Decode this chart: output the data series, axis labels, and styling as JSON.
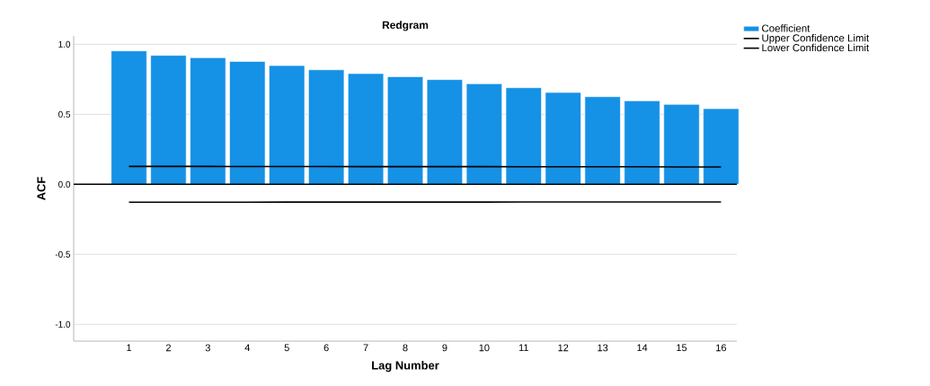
{
  "chart_data": {
    "type": "bar",
    "title": "Redgram",
    "xlabel": "Lag Number",
    "ylabel": "ACF",
    "categories": [
      "1",
      "2",
      "3",
      "4",
      "5",
      "6",
      "7",
      "8",
      "9",
      "10",
      "11",
      "12",
      "13",
      "14",
      "15",
      "16"
    ],
    "series": [
      {
        "name": "Coefficient",
        "color": "#1591e6",
        "values": [
          0.953,
          0.921,
          0.904,
          0.878,
          0.848,
          0.818,
          0.791,
          0.769,
          0.748,
          0.718,
          0.69,
          0.656,
          0.626,
          0.596,
          0.571,
          0.54
        ]
      },
      {
        "name": "Upper Confidence Limit",
        "type": "line",
        "color": "#000000",
        "values": [
          0.128,
          0.128,
          0.128,
          0.127,
          0.127,
          0.127,
          0.126,
          0.126,
          0.126,
          0.126,
          0.125,
          0.125,
          0.125,
          0.125,
          0.124,
          0.124
        ]
      },
      {
        "name": "Lower Confidence Limit",
        "type": "line",
        "color": "#000000",
        "values": [
          -0.128,
          -0.128,
          -0.128,
          -0.128,
          -0.127,
          -0.127,
          -0.127,
          -0.127,
          -0.127,
          -0.127,
          -0.126,
          -0.126,
          -0.126,
          -0.126,
          -0.126,
          -0.126
        ]
      }
    ],
    "ylim": [
      -1.12,
      1.06
    ],
    "yticks": [
      {
        "value": -1,
        "label": "-1.0"
      },
      {
        "value": -0.5,
        "label": "-0.5"
      },
      {
        "value": 0,
        "label": "0.0"
      },
      {
        "value": 0.5,
        "label": "0.5"
      },
      {
        "value": 1,
        "label": "1.0"
      }
    ],
    "ref_lines": [
      {
        "axis": "y",
        "value": 0,
        "color": "#000000"
      }
    ],
    "grid": "y",
    "legend": "top right",
    "marker": "none",
    "line_style": "solid"
  }
}
